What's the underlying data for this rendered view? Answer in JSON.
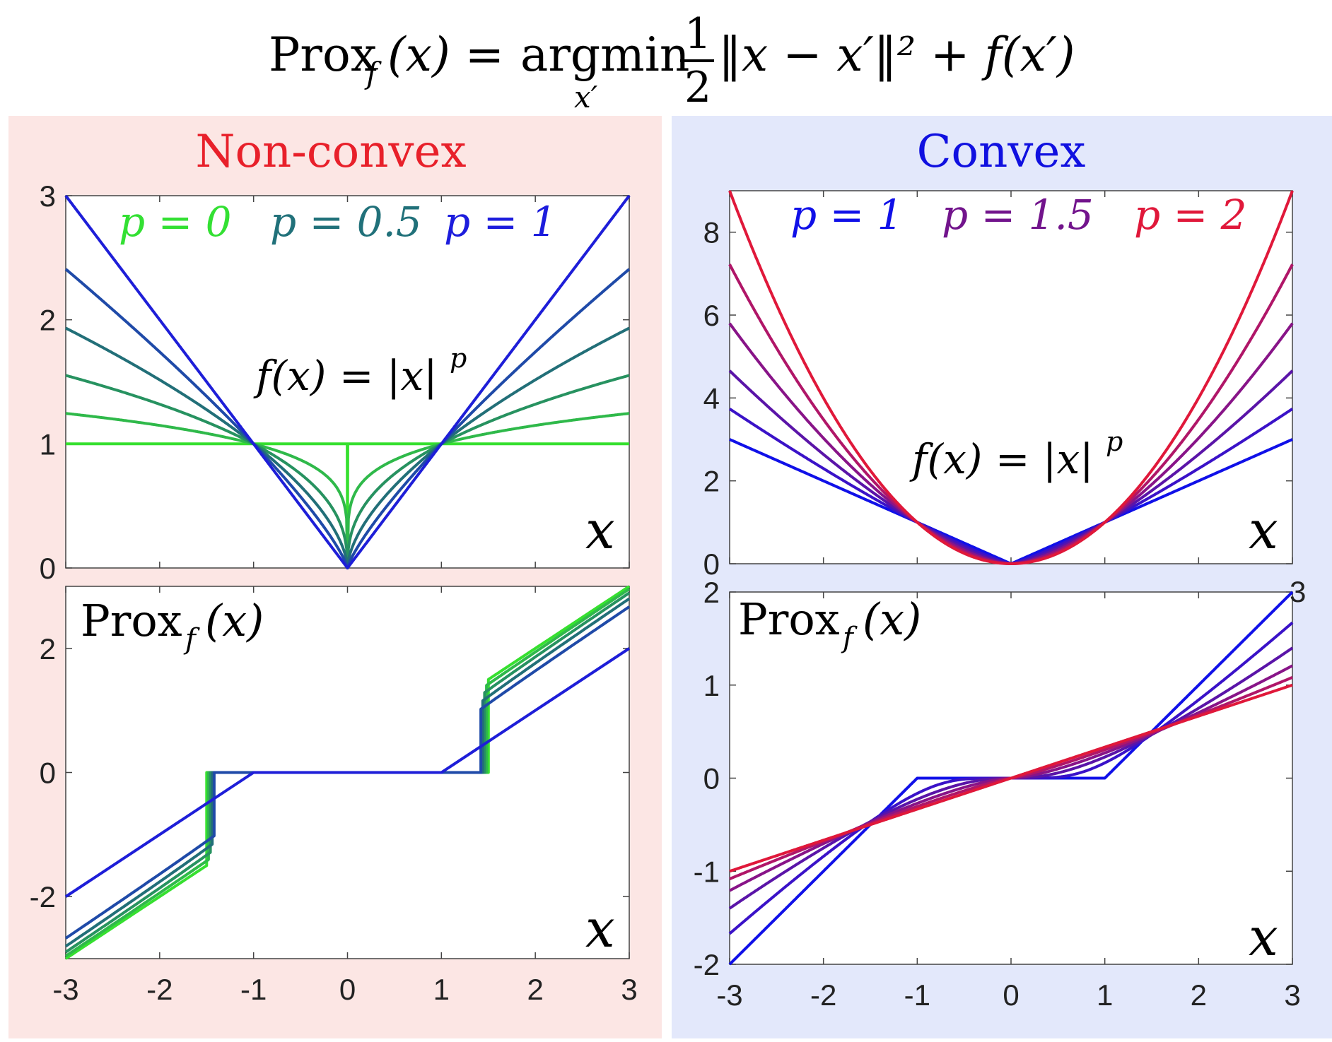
{
  "formula": {
    "lhs_op": "Prox",
    "lhs_sub": "f",
    "lhs_arg": "(x) =",
    "argmin": "argmin",
    "argmin_sub": "x′",
    "frac_num": "1",
    "frac_den": "2",
    "rhs": "‖x − x′‖² + f(x′)"
  },
  "panels": {
    "nonconvex": {
      "title": "Non-convex",
      "title_color": "#e8202a",
      "bg": "#fce6e4"
    },
    "convex": {
      "title": "Convex",
      "title_color": "#1010e0",
      "bg": "#e3e8fb"
    }
  },
  "labels": {
    "f_eq": "f(x) = |x|",
    "f_exp": "p",
    "prox": "Prox",
    "prox_sub": "f",
    "prox_arg": "(x)",
    "x": "x",
    "tick_stub": "3"
  },
  "legend": {
    "nonconvex": [
      {
        "text": "p = 0",
        "color": "#33e033"
      },
      {
        "text": "p = 0.5",
        "color": "#21717a"
      },
      {
        "text": "p = 1",
        "color": "#1d1ddd"
      }
    ],
    "convex": [
      {
        "text": "p = 1",
        "color": "#1010e8"
      },
      {
        "text": "p = 1.5",
        "color": "#72148c"
      },
      {
        "text": "p = 2",
        "color": "#e0183a"
      }
    ]
  },
  "chart_data": [
    {
      "id": "nc_f",
      "type": "line",
      "function": "f(x) = |x|^p",
      "xlim": [
        -3,
        3
      ],
      "ylim": [
        0,
        3
      ],
      "yticks": [
        "0",
        "1",
        "2",
        "3"
      ],
      "series_p": [
        0,
        0.2,
        0.4,
        0.6,
        0.8,
        1
      ],
      "colors": [
        "#36e02f",
        "#2fb94a",
        "#279260",
        "#226f78",
        "#1f4aa8",
        "#1e1ed8"
      ]
    },
    {
      "id": "nc_prox",
      "type": "line",
      "function": "Prox_f(x)",
      "xlim": [
        -3,
        3
      ],
      "ylim": [
        -3,
        3
      ],
      "xticks": [
        "-3",
        "-2",
        "-1",
        "0",
        "1",
        "2",
        "3"
      ],
      "yticks": [
        "-2",
        "0",
        "2"
      ],
      "series_p": [
        0,
        0.2,
        0.4,
        0.6,
        0.8,
        1
      ],
      "jump_points": [
        1.5,
        1.48,
        1.46,
        1.44,
        1.42,
        1.0
      ],
      "colors": [
        "#36e02f",
        "#2fb94a",
        "#279260",
        "#226f78",
        "#1f4aa8",
        "#1e1ed8"
      ]
    },
    {
      "id": "cv_f",
      "type": "line",
      "function": "f(x) = |x|^p",
      "xlim": [
        -3,
        3
      ],
      "ylim": [
        0,
        9
      ],
      "yticks": [
        "0",
        "2",
        "4",
        "6",
        "8"
      ],
      "series_p": [
        1,
        1.2,
        1.4,
        1.6,
        1.8,
        2
      ],
      "colors": [
        "#1010e8",
        "#3a12c8",
        "#5a14a8",
        "#881488",
        "#b01668",
        "#e0183a"
      ]
    },
    {
      "id": "cv_prox",
      "type": "line",
      "function": "Prox_f(x)",
      "xlim": [
        -3,
        3
      ],
      "ylim": [
        -2,
        2
      ],
      "xticks": [
        "-3",
        "-2",
        "-1",
        "0",
        "1",
        "2",
        "3"
      ],
      "yticks": [
        "-2",
        "-1",
        "0",
        "1",
        "2"
      ],
      "series_p": [
        1,
        1.2,
        1.4,
        1.6,
        1.8,
        2
      ],
      "colors": [
        "#1010e8",
        "#3a12c8",
        "#5a14a8",
        "#881488",
        "#b01668",
        "#e0183a"
      ]
    }
  ]
}
